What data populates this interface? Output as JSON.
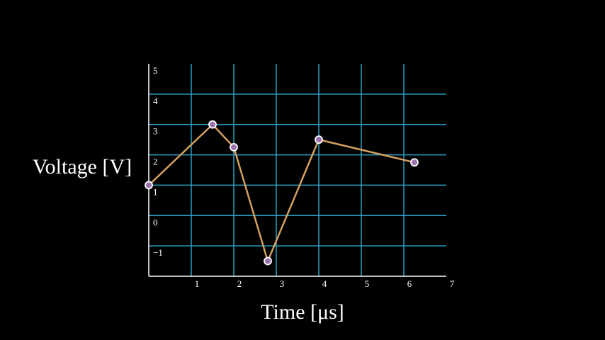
{
  "chart_data": {
    "type": "line",
    "x_label": "Time [μs]",
    "y_label": "Voltage [V]",
    "x": [
      0,
      1.5,
      2,
      2.8,
      4,
      6.25
    ],
    "series": [
      {
        "color": "#d4a060",
        "values": [
          1,
          3,
          2.25,
          -1.5,
          2.5,
          1.75
        ]
      }
    ],
    "marker_color": "#9a72ac",
    "xlim": [
      0,
      7
    ],
    "xticks": [
      1,
      2,
      3,
      4,
      5,
      6,
      7
    ],
    "ylim": [
      -2,
      5
    ],
    "yticks": [
      {
        "value": -1,
        "label": "−1"
      },
      0,
      1,
      2,
      3,
      4,
      5
    ],
    "grid": true,
    "grid_color": "#2a9fc4"
  }
}
